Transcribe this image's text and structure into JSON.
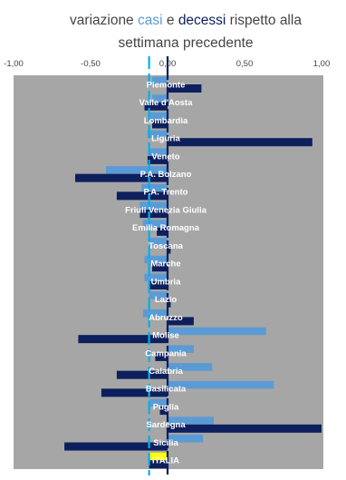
{
  "chart_data": {
    "type": "bar",
    "orientation": "horizontal",
    "title": {
      "part1": "variazione ",
      "casi_word": "casi",
      "part2": " e ",
      "decessi_word": "decessi",
      "part3": " rispetto alla",
      "line2": "settimana precedente"
    },
    "xlim": [
      -1.0,
      1.0
    ],
    "xticks": [
      -1.0,
      -0.5,
      0.0,
      0.5,
      1.0
    ],
    "xtick_labels": [
      "-1,00",
      "-0,50",
      "0,00",
      "0,50",
      "1,00"
    ],
    "grid": false,
    "legend": "none",
    "categories": [
      "Piemonte",
      "Valle d'Aosta",
      "Lombardia",
      "Liguria",
      "Veneto",
      "P.A. Bolzano",
      "P.A. Trento",
      "Friuli Venezia Giulia",
      "Emilia Romagna",
      "Toscana",
      "Marche",
      "Umbria",
      "Lazio",
      "Abruzzo",
      "Molise",
      "Campania",
      "Calabria",
      "Basilicata",
      "Puglia",
      "Sardegna",
      "Sicilia",
      "ITALIA"
    ],
    "series": [
      {
        "key": "casi",
        "values": [
          -0.1,
          -0.1,
          -0.12,
          -0.13,
          -0.12,
          -0.4,
          -0.17,
          -0.18,
          -0.16,
          -0.12,
          -0.15,
          -0.15,
          -0.12,
          -0.16,
          0.64,
          0.17,
          0.29,
          0.69,
          -0.12,
          0.3,
          0.23,
          -0.12
        ]
      },
      {
        "key": "decessi",
        "values": [
          0.22,
          -0.15,
          -0.1,
          0.94,
          -0.13,
          -0.6,
          -0.33,
          -0.18,
          -0.07,
          0.02,
          -0.1,
          -0.12,
          0.02,
          0.17,
          -0.58,
          -0.08,
          -0.33,
          -0.43,
          -0.05,
          1.0,
          -0.67,
          -0.12
        ]
      }
    ],
    "italia_fill_color": "#ffff00",
    "reference_line_x": -0.12
  },
  "colors": {
    "plot_background": "#a6a6a6",
    "casi": "#5b9bd5",
    "decessi": "#0d1f5c",
    "title_text": "#444444",
    "axis_line": "#0d1f5c",
    "reference_line": "#00b0f0",
    "label_text": "#ffffff"
  }
}
